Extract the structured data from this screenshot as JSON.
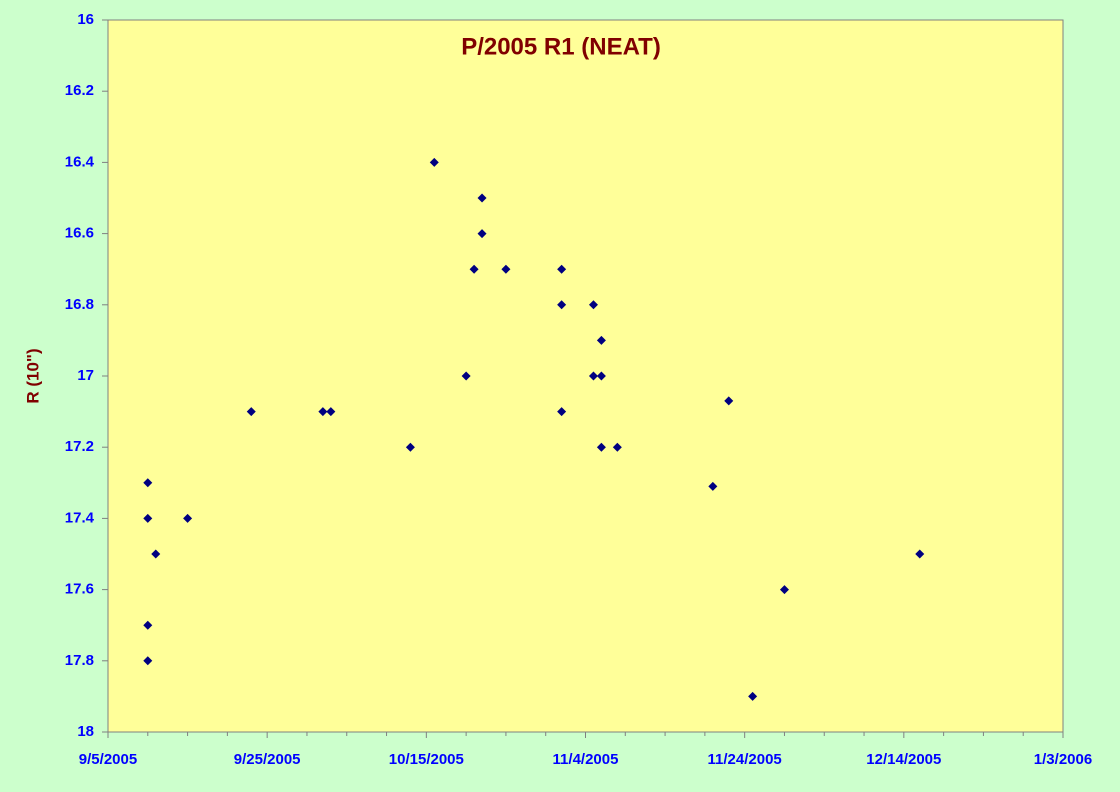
{
  "chart_data": {
    "type": "scatter",
    "title": "P/2005 R1 (NEAT)",
    "y_label": "R (10\")",
    "color": "#000080",
    "x": [
      "9/10/2005",
      "9/10/2005",
      "9/11/2005",
      "9/10/2005",
      "9/10/2005",
      "9/15/2005",
      "9/23/2005",
      "10/2/2005",
      "10/3/2005",
      "10/13/2005",
      "10/16/2005",
      "10/20/2005",
      "10/21/2005",
      "10/22/2005",
      "10/22/2005",
      "10/25/2005",
      "11/1/2005",
      "11/1/2005",
      "11/1/2005",
      "11/5/2005",
      "11/5/2005",
      "11/6/2005",
      "11/6/2005",
      "11/6/2005",
      "11/8/2005",
      "11/20/2005",
      "11/22/2005",
      "11/25/2005",
      "11/29/2005",
      "12/16/2005"
    ],
    "y": [
      17.3,
      17.4,
      17.5,
      17.7,
      17.8,
      17.4,
      17.1,
      17.1,
      17.1,
      17.2,
      16.4,
      17.0,
      16.7,
      16.5,
      16.6,
      16.7,
      16.7,
      16.8,
      17.1,
      16.8,
      17.0,
      16.9,
      17.0,
      17.2,
      17.2,
      17.31,
      17.07,
      17.9,
      17.6,
      17.5
    ],
    "xlim": [
      "9/5/2005",
      "1/3/2006"
    ],
    "xticks": [
      "9/5/2005",
      "9/25/2005",
      "10/15/2005",
      "11/4/2005",
      "11/24/2005",
      "12/14/2005",
      "1/3/2006"
    ],
    "ylim": [
      18,
      16
    ],
    "yticks": [
      16,
      16.2,
      16.4,
      16.6,
      16.8,
      17,
      17.2,
      17.4,
      17.6,
      17.8,
      18
    ]
  }
}
